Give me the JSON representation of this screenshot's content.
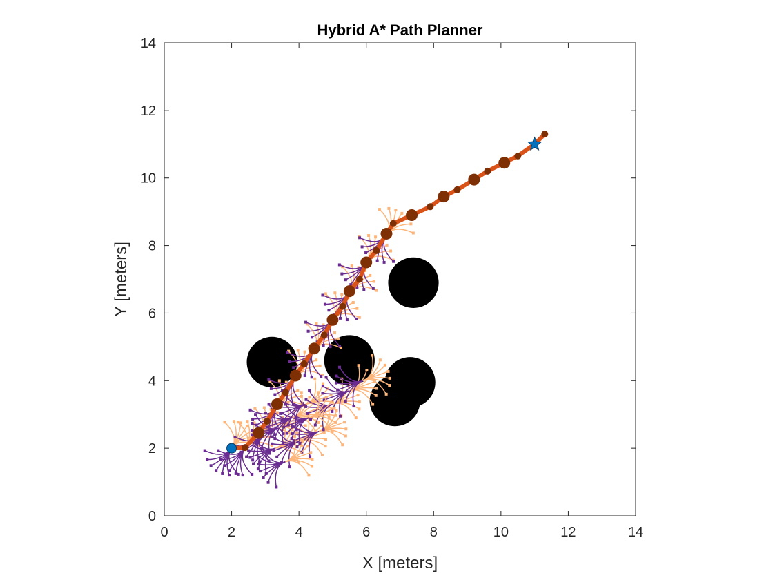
{
  "chart_data": {
    "type": "scatter",
    "title": "Hybrid A* Path Planner",
    "xlabel": "X [meters]",
    "ylabel": "Y [meters]",
    "xlim": [
      0,
      14
    ],
    "ylim": [
      0,
      14
    ],
    "xticks": [
      "0",
      "2",
      "4",
      "6",
      "8",
      "10",
      "12",
      "14"
    ],
    "yticks": [
      "0",
      "2",
      "4",
      "6",
      "8",
      "10",
      "12",
      "14"
    ],
    "grid": false,
    "legend": "none",
    "colors": {
      "path": "#D95319",
      "path_nodes": "#7E2F03",
      "tree_reverse": "#6A2C91",
      "tree_forward": "#FDB57A",
      "obstacle": "#000000",
      "start_goal": "#0072BD",
      "axes": "#262626"
    },
    "obstacles": [
      {
        "x": 3.2,
        "y": 4.55,
        "r": 0.75
      },
      {
        "x": 5.5,
        "y": 4.6,
        "r": 0.75
      },
      {
        "x": 7.4,
        "y": 6.9,
        "r": 0.75
      },
      {
        "x": 7.3,
        "y": 3.95,
        "r": 0.75
      },
      {
        "x": 6.85,
        "y": 3.4,
        "r": 0.75
      }
    ],
    "start": {
      "x": 2.0,
      "y": 2.0
    },
    "goal": {
      "x": 11.0,
      "y": 11.0
    },
    "path": [
      [
        2.0,
        2.0
      ],
      [
        2.4,
        2.02
      ],
      [
        2.8,
        2.45
      ],
      [
        3.05,
        2.8
      ],
      [
        3.35,
        3.3
      ],
      [
        3.6,
        3.65
      ],
      [
        3.9,
        4.15
      ],
      [
        4.15,
        4.5
      ],
      [
        4.45,
        4.95
      ],
      [
        4.75,
        5.35
      ],
      [
        5.0,
        5.8
      ],
      [
        5.3,
        6.2
      ],
      [
        5.5,
        6.65
      ],
      [
        5.8,
        7.0
      ],
      [
        6.0,
        7.5
      ],
      [
        6.3,
        7.85
      ],
      [
        6.6,
        8.35
      ],
      [
        6.8,
        8.65
      ],
      [
        7.35,
        8.9
      ],
      [
        7.9,
        9.15
      ],
      [
        8.3,
        9.45
      ],
      [
        8.7,
        9.65
      ],
      [
        9.2,
        9.95
      ],
      [
        9.6,
        10.2
      ],
      [
        10.1,
        10.45
      ],
      [
        10.5,
        10.65
      ],
      [
        11.0,
        11.0
      ],
      [
        11.3,
        11.3
      ]
    ],
    "big_nodes": [
      [
        2.8,
        2.45
      ],
      [
        3.35,
        3.3
      ],
      [
        3.9,
        4.15
      ],
      [
        4.45,
        4.95
      ],
      [
        5.0,
        5.8
      ],
      [
        5.5,
        6.65
      ],
      [
        6.0,
        7.5
      ],
      [
        6.6,
        8.35
      ],
      [
        7.35,
        8.9
      ],
      [
        8.3,
        9.45
      ],
      [
        9.2,
        9.95
      ],
      [
        10.1,
        10.45
      ]
    ],
    "small_nodes": [
      [
        2.4,
        2.02
      ],
      [
        3.05,
        2.8
      ],
      [
        3.6,
        3.65
      ],
      [
        4.15,
        4.5
      ],
      [
        4.75,
        5.35
      ],
      [
        5.3,
        6.2
      ],
      [
        5.8,
        7.0
      ],
      [
        6.3,
        7.85
      ],
      [
        6.8,
        8.65
      ],
      [
        7.9,
        9.15
      ],
      [
        8.7,
        9.65
      ],
      [
        9.6,
        10.2
      ],
      [
        10.5,
        10.65
      ],
      [
        11.3,
        11.3
      ]
    ],
    "tree_nodes": [
      [
        2.0,
        2.0
      ],
      [
        2.4,
        2.0
      ],
      [
        2.9,
        2.4
      ],
      [
        3.35,
        3.2
      ],
      [
        3.9,
        4.1
      ],
      [
        4.45,
        4.9
      ],
      [
        5.0,
        5.8
      ],
      [
        5.5,
        6.6
      ],
      [
        6.0,
        7.5
      ],
      [
        6.6,
        8.3
      ],
      [
        3.3,
        2.0
      ],
      [
        3.4,
        2.6
      ],
      [
        3.8,
        2.9
      ],
      [
        4.2,
        3.3
      ],
      [
        4.0,
        2.2
      ],
      [
        4.6,
        2.5
      ],
      [
        5.0,
        3.3
      ],
      [
        5.5,
        3.7
      ],
      [
        5.9,
        4.0
      ],
      [
        4.3,
        2.9
      ],
      [
        3.6,
        1.6
      ]
    ]
  }
}
